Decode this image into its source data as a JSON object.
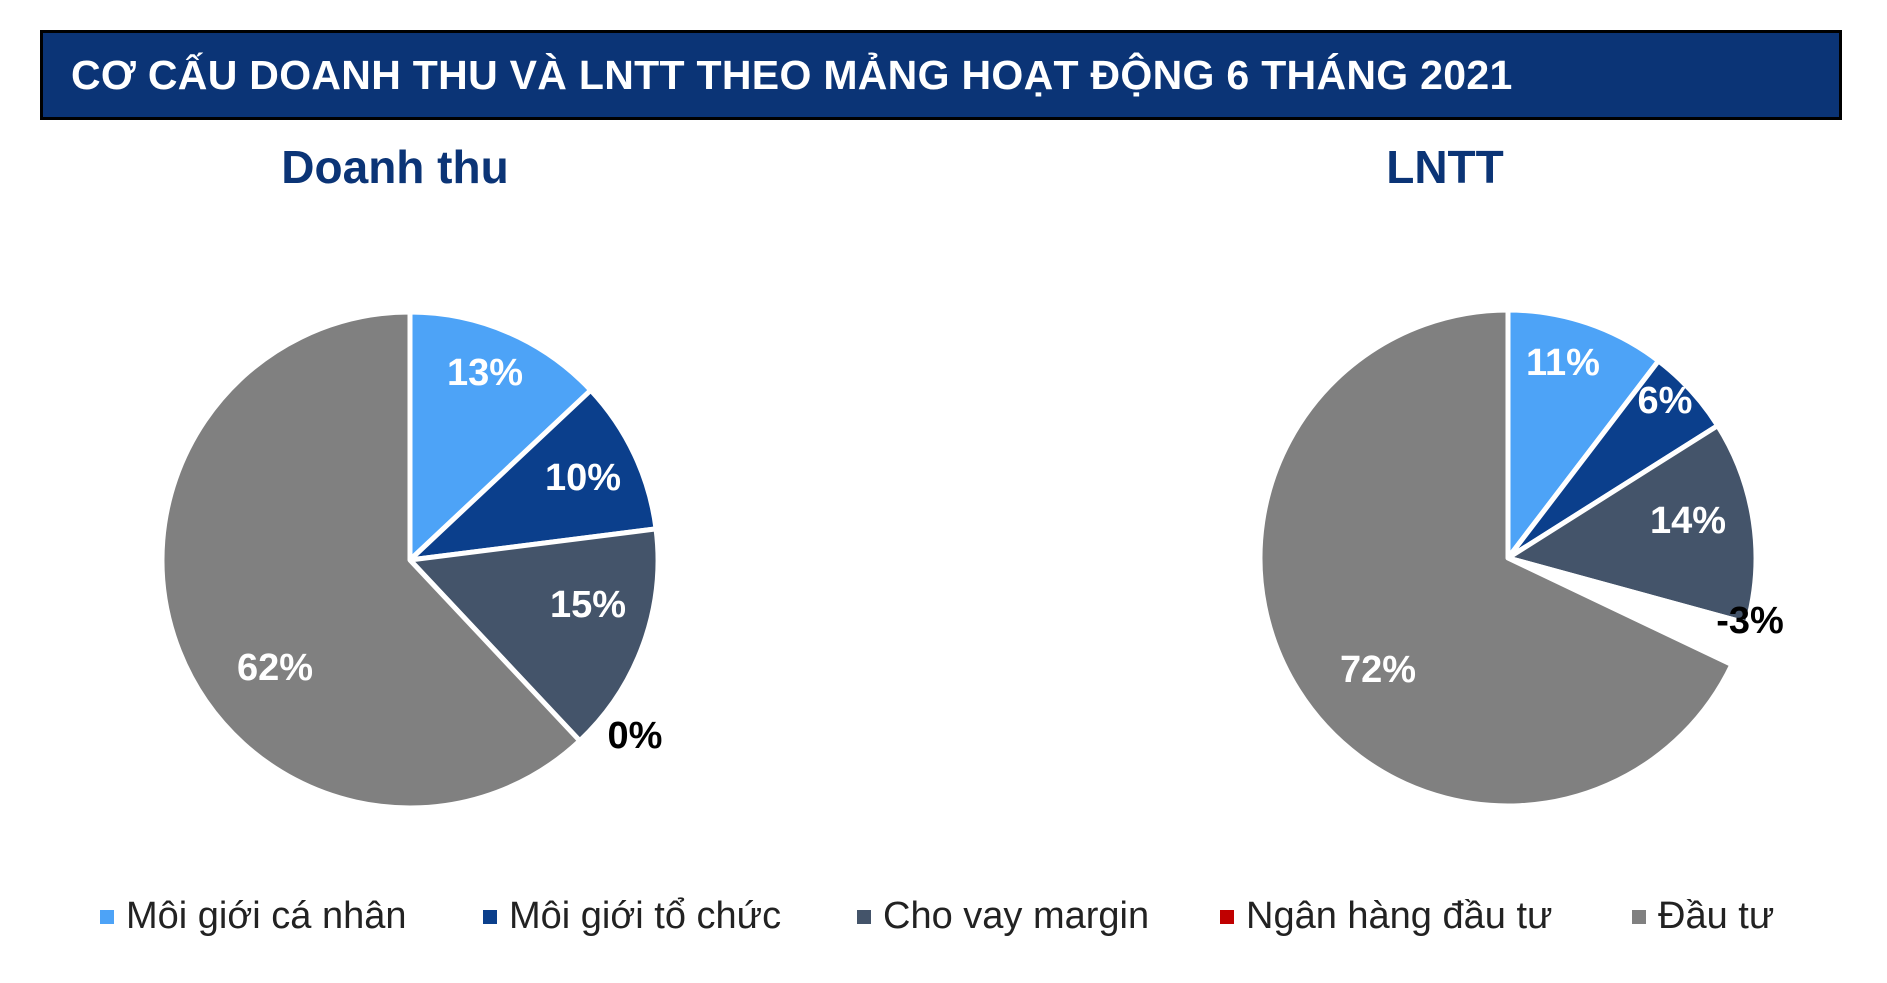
{
  "title": "CƠ CẤU DOANH THU VÀ LNTT THEO MẢNG HOẠT ĐỘNG 6 THÁNG 2021",
  "legend": [
    {
      "label": "Môi giới cá nhân",
      "color": "#4da3f7"
    },
    {
      "label": "Môi giới tổ chức",
      "color": "#0b3f8c"
    },
    {
      "label": "Cho vay margin",
      "color": "#44546a"
    },
    {
      "label": "Ngân hàng đầu tư",
      "color": "#c00000"
    },
    {
      "label": "Đầu tư",
      "color": "#808080"
    }
  ],
  "chart_data": [
    {
      "type": "pie",
      "title": "Doanh thu",
      "categories": [
        "Môi giới cá nhân",
        "Môi giới tổ chức",
        "Cho vay margin",
        "Ngân hàng đầu tư",
        "Đầu tư"
      ],
      "values": [
        13,
        10,
        15,
        0,
        62
      ],
      "labels": [
        "13%",
        "10%",
        "15%",
        "0%",
        "62%"
      ],
      "legend": "bottom"
    },
    {
      "type": "pie",
      "title": "LNTT",
      "categories": [
        "Môi giới cá nhân",
        "Môi giới tổ chức",
        "Cho vay margin",
        "Ngân hàng đầu tư",
        "Đầu tư"
      ],
      "values": [
        11,
        6,
        14,
        -3,
        72
      ],
      "labels": [
        "11%",
        "6%",
        "14%",
        "-3%",
        "72%"
      ],
      "legend": "bottom"
    }
  ]
}
